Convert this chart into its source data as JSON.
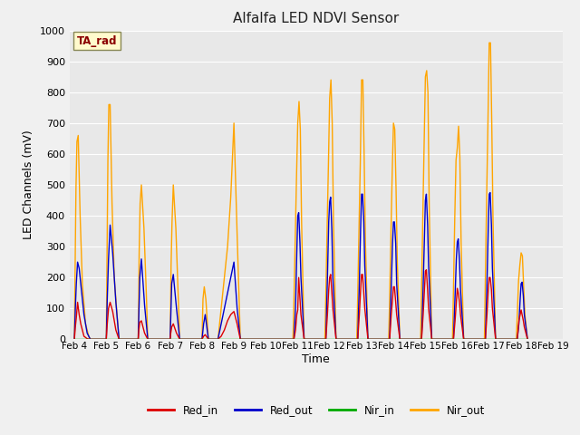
{
  "title": "Alfalfa LED NDVI Sensor",
  "xlabel": "Time",
  "ylabel": "LED Channels (mV)",
  "ylim": [
    0,
    1000
  ],
  "annotation_text": "TA_rad",
  "annotation_color": "#8B0000",
  "annotation_bg": "#FFFACD",
  "fig_bg_color": "#F0F0F0",
  "ax_bg_color": "#E8E8E8",
  "grid_color": "#FFFFFF",
  "colors": {
    "Red_in": "#DD0000",
    "Red_out": "#0000CC",
    "Nir_in": "#00AA00",
    "Nir_out": "#FFA500"
  },
  "x_ticks": [
    4,
    5,
    6,
    7,
    8,
    9,
    10,
    11,
    12,
    13,
    14,
    15,
    16,
    17,
    18,
    19
  ],
  "x_tick_labels": [
    "Feb 4",
    "Feb 5",
    "Feb 6",
    "Feb 7",
    "Feb 8",
    "Feb 9",
    "Feb 10",
    "Feb 11",
    "Feb 12",
    "Feb 13",
    "Feb 14",
    "Feb 15",
    "Feb 16",
    "Feb 17",
    "Feb 18",
    "Feb 19"
  ],
  "series": {
    "Red_in": {
      "x": [
        4.0,
        4.03,
        4.06,
        4.1,
        4.15,
        4.2,
        4.3,
        4.4,
        4.5,
        5.0,
        5.03,
        5.07,
        5.12,
        5.2,
        5.3,
        5.4,
        6.0,
        6.02,
        6.05,
        6.1,
        6.2,
        6.3,
        7.0,
        7.02,
        7.05,
        7.1,
        7.2,
        7.3,
        8.0,
        8.05,
        8.1,
        8.2,
        8.5,
        8.6,
        8.7,
        8.8,
        8.9,
        9.0,
        9.1,
        9.2,
        10.88,
        10.93,
        10.97,
        11.0,
        11.03,
        11.07,
        11.1,
        11.2,
        11.88,
        11.93,
        11.97,
        12.0,
        12.03,
        12.07,
        12.1,
        12.2,
        12.88,
        12.93,
        12.97,
        13.0,
        13.03,
        13.07,
        13.1,
        13.2,
        13.88,
        13.93,
        13.97,
        14.0,
        14.03,
        14.07,
        14.1,
        14.2,
        14.88,
        14.93,
        14.97,
        15.0,
        15.03,
        15.07,
        15.1,
        15.2,
        15.88,
        15.93,
        15.97,
        16.0,
        16.03,
        16.07,
        16.1,
        16.2,
        16.88,
        16.93,
        16.97,
        17.0,
        17.03,
        17.07,
        17.1,
        17.2,
        17.88,
        17.93,
        17.97,
        18.0,
        18.03,
        18.07,
        18.1,
        18.2
      ],
      "y": [
        0,
        40,
        70,
        120,
        80,
        50,
        10,
        2,
        0,
        0,
        50,
        100,
        120,
        90,
        30,
        0,
        0,
        30,
        55,
        60,
        20,
        0,
        0,
        20,
        40,
        50,
        20,
        0,
        0,
        10,
        15,
        0,
        0,
        10,
        30,
        60,
        80,
        90,
        50,
        0,
        0,
        30,
        80,
        95,
        200,
        130,
        80,
        0,
        0,
        80,
        160,
        200,
        210,
        150,
        100,
        0,
        0,
        80,
        160,
        210,
        210,
        150,
        100,
        0,
        0,
        80,
        130,
        170,
        170,
        120,
        80,
        0,
        0,
        80,
        160,
        220,
        225,
        160,
        100,
        0,
        0,
        60,
        120,
        165,
        150,
        120,
        80,
        0,
        0,
        80,
        160,
        200,
        200,
        160,
        100,
        0,
        0,
        60,
        80,
        95,
        80,
        60,
        40,
        0
      ]
    },
    "Red_out": {
      "x": [
        4.0,
        4.03,
        4.06,
        4.1,
        4.15,
        4.2,
        4.3,
        4.4,
        4.5,
        5.0,
        5.03,
        5.07,
        5.12,
        5.2,
        5.3,
        5.4,
        6.0,
        6.02,
        6.05,
        6.1,
        6.2,
        6.3,
        7.0,
        7.02,
        7.05,
        7.1,
        7.2,
        7.3,
        8.0,
        8.05,
        8.1,
        8.2,
        8.5,
        8.6,
        8.7,
        8.8,
        8.9,
        9.0,
        9.1,
        9.2,
        10.88,
        10.93,
        10.97,
        11.0,
        11.03,
        11.07,
        11.1,
        11.2,
        11.88,
        11.93,
        11.97,
        12.0,
        12.03,
        12.07,
        12.1,
        12.2,
        12.88,
        12.93,
        12.97,
        13.0,
        13.03,
        13.07,
        13.1,
        13.2,
        13.88,
        13.93,
        13.97,
        14.0,
        14.03,
        14.07,
        14.1,
        14.2,
        14.88,
        14.93,
        14.97,
        15.0,
        15.03,
        15.07,
        15.1,
        15.2,
        15.88,
        15.93,
        15.97,
        16.0,
        16.03,
        16.07,
        16.1,
        16.2,
        16.88,
        16.93,
        16.97,
        17.0,
        17.03,
        17.07,
        17.1,
        17.2,
        17.88,
        17.93,
        17.97,
        18.0,
        18.03,
        18.07,
        18.1,
        18.2
      ],
      "y": [
        0,
        100,
        180,
        250,
        230,
        180,
        80,
        20,
        0,
        0,
        130,
        260,
        370,
        280,
        120,
        0,
        0,
        80,
        200,
        260,
        110,
        0,
        0,
        70,
        180,
        210,
        100,
        0,
        0,
        50,
        80,
        0,
        0,
        50,
        100,
        150,
        200,
        250,
        100,
        0,
        0,
        100,
        280,
        400,
        410,
        310,
        200,
        0,
        0,
        200,
        380,
        445,
        460,
        350,
        200,
        0,
        0,
        180,
        360,
        470,
        470,
        380,
        240,
        0,
        0,
        170,
        310,
        380,
        380,
        310,
        180,
        0,
        0,
        170,
        330,
        450,
        470,
        370,
        240,
        0,
        0,
        140,
        260,
        315,
        325,
        250,
        160,
        0,
        0,
        180,
        360,
        470,
        475,
        370,
        230,
        0,
        0,
        50,
        130,
        180,
        185,
        140,
        80,
        0
      ]
    },
    "Nir_in": {
      "x": [
        4.0,
        4.5,
        5.0,
        5.4,
        6.0,
        6.3,
        7.0,
        7.3,
        8.0,
        8.2,
        8.5,
        9.2,
        10.88,
        11.2,
        11.88,
        12.2,
        12.88,
        13.2,
        13.88,
        14.2,
        14.88,
        15.2,
        15.88,
        16.2,
        16.88,
        17.2,
        17.88,
        18.2
      ],
      "y": [
        0,
        0,
        0,
        0,
        0,
        0,
        0,
        0,
        0,
        0,
        0,
        0,
        0,
        0,
        0,
        0,
        0,
        0,
        0,
        0,
        0,
        0,
        0,
        0,
        0,
        0,
        0,
        0
      ]
    },
    "Nir_out": {
      "x": [
        4.0,
        4.01,
        4.03,
        4.05,
        4.08,
        4.12,
        4.18,
        4.25,
        4.35,
        4.45,
        4.5,
        5.0,
        5.01,
        5.03,
        5.05,
        5.08,
        5.12,
        5.18,
        5.25,
        5.35,
        5.4,
        6.0,
        6.01,
        6.03,
        6.06,
        6.1,
        6.18,
        6.25,
        6.3,
        7.0,
        7.01,
        7.03,
        7.06,
        7.1,
        7.18,
        7.25,
        7.3,
        8.0,
        8.03,
        8.07,
        8.12,
        8.2,
        8.5,
        8.6,
        8.7,
        8.8,
        8.9,
        9.0,
        9.1,
        9.2,
        10.85,
        10.88,
        10.92,
        10.96,
        11.0,
        11.04,
        11.08,
        11.12,
        11.2,
        11.85,
        11.88,
        11.92,
        11.96,
        12.0,
        12.04,
        12.08,
        12.12,
        12.2,
        12.85,
        12.88,
        12.92,
        12.96,
        13.0,
        13.04,
        13.08,
        13.12,
        13.2,
        13.85,
        13.88,
        13.92,
        13.96,
        14.0,
        14.04,
        14.08,
        14.12,
        14.2,
        14.85,
        14.88,
        14.92,
        14.96,
        15.0,
        15.04,
        15.08,
        15.12,
        15.2,
        15.85,
        15.88,
        15.92,
        15.96,
        16.0,
        16.04,
        16.08,
        16.12,
        16.2,
        16.85,
        16.88,
        16.92,
        16.96,
        17.0,
        17.04,
        17.08,
        17.12,
        17.2,
        17.85,
        17.88,
        17.92,
        17.96,
        18.0,
        18.04,
        18.08,
        18.12,
        18.2
      ],
      "y": [
        0,
        100,
        300,
        490,
        640,
        660,
        400,
        180,
        50,
        10,
        0,
        0,
        120,
        350,
        580,
        760,
        760,
        440,
        200,
        60,
        0,
        0,
        80,
        280,
        440,
        500,
        360,
        160,
        0,
        0,
        60,
        240,
        380,
        500,
        360,
        150,
        0,
        0,
        130,
        170,
        130,
        0,
        0,
        100,
        200,
        300,
        460,
        700,
        340,
        0,
        0,
        120,
        320,
        520,
        700,
        770,
        680,
        380,
        0,
        0,
        140,
        360,
        560,
        780,
        840,
        700,
        380,
        0,
        0,
        140,
        360,
        570,
        840,
        840,
        600,
        320,
        0,
        0,
        130,
        340,
        540,
        700,
        680,
        490,
        250,
        0,
        0,
        160,
        400,
        630,
        850,
        870,
        800,
        430,
        0,
        0,
        160,
        390,
        580,
        620,
        690,
        590,
        310,
        0,
        0,
        200,
        460,
        700,
        960,
        960,
        700,
        380,
        0,
        0,
        80,
        190,
        240,
        280,
        270,
        170,
        80,
        0
      ]
    }
  }
}
